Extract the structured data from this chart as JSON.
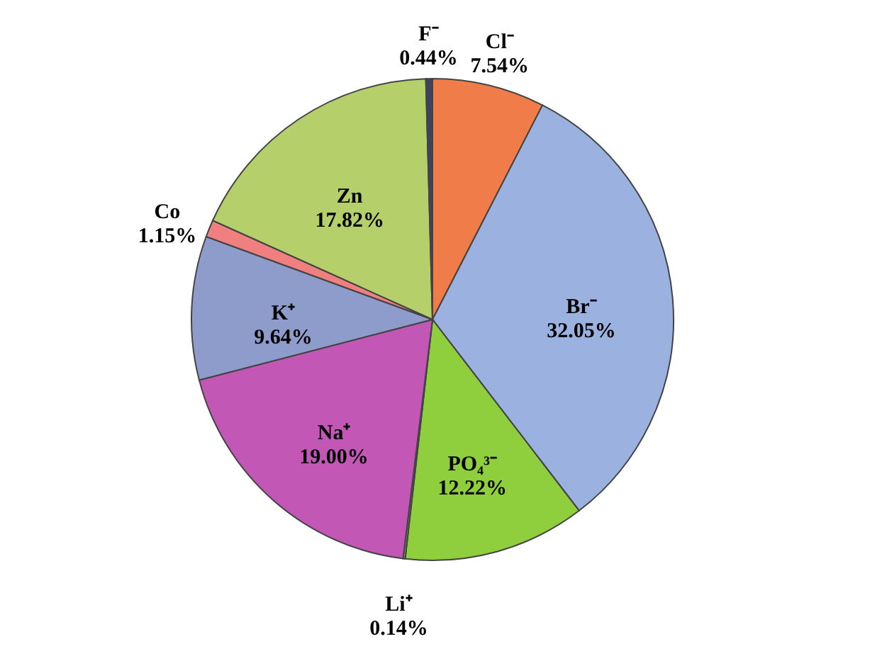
{
  "chart_data": {
    "type": "pie",
    "categories": [
      "Cl⁻",
      "Br⁻",
      "PO₄³⁻",
      "Li⁺",
      "Na⁺",
      "K⁺",
      "Co",
      "Zn",
      "F⁻"
    ],
    "values": [
      7.54,
      32.05,
      12.22,
      0.14,
      19.0,
      9.64,
      1.15,
      17.82,
      0.44
    ],
    "value_labels": [
      "7.54%",
      "32.05%",
      "12.22%",
      "0.14%",
      "19.00%",
      "9.64%",
      "1.15%",
      "17.82%",
      "0.44%"
    ],
    "colors": [
      "#f07c4a",
      "#9bb2e0",
      "#8fce3c",
      "#7a9a3a",
      "#c257b5",
      "#8e9ccc",
      "#f08080",
      "#b5d06b",
      "#404060"
    ]
  }
}
